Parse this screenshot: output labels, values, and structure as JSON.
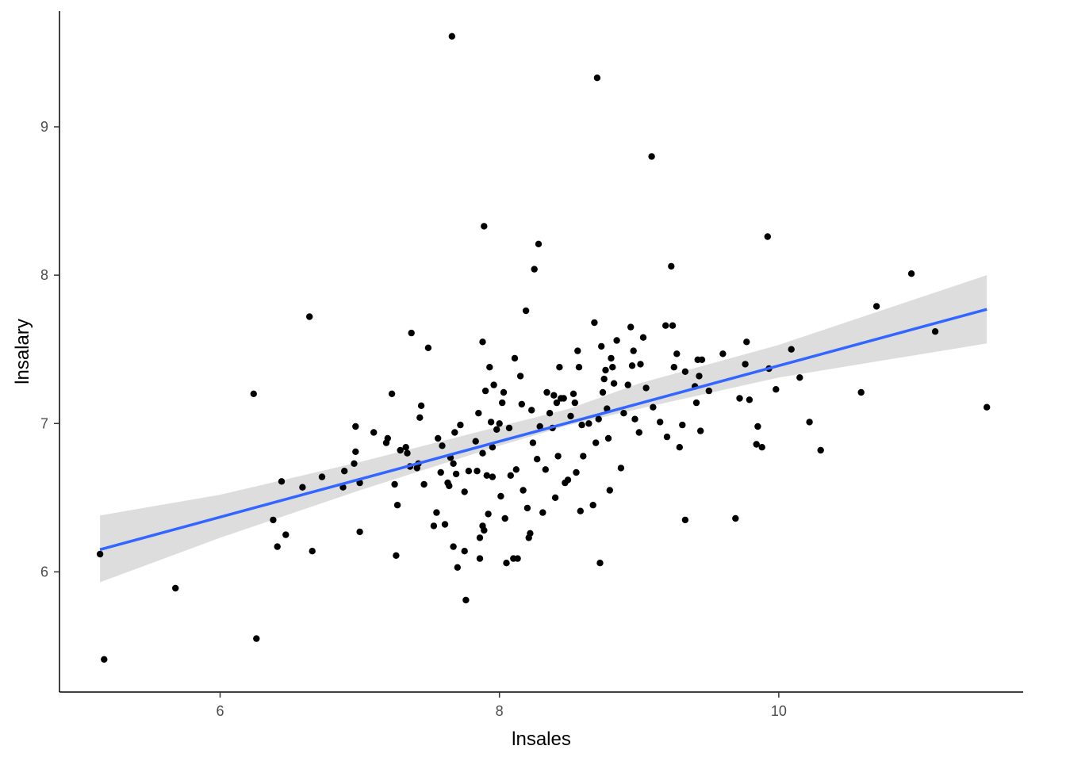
{
  "chart_data": {
    "type": "scatter",
    "xlabel": "lnsales",
    "ylabel": "lnsalary",
    "xlim": [
      4.85,
      11.75
    ],
    "ylim": [
      5.19,
      9.78
    ],
    "x_ticks": [
      6,
      8,
      10
    ],
    "x_tick_labels": [
      "6",
      "8",
      "10"
    ],
    "y_ticks": [
      6,
      7,
      8,
      9
    ],
    "y_tick_labels": [
      "6",
      "7",
      "8",
      "9"
    ],
    "grid": false,
    "legend": "none",
    "colors": {
      "points": "#000000",
      "fit_line": "#3366FF",
      "confidence_band": "#D9D9D9"
    },
    "fit": {
      "method": "lm",
      "x_range": [
        5.14,
        11.49
      ],
      "y_at_start": 6.15,
      "y_at_end": 7.77
    },
    "confidence_band": [
      {
        "x": 5.14,
        "lower": 5.93,
        "upper": 6.38
      },
      {
        "x": 6.0,
        "lower": 6.23,
        "upper": 6.52
      },
      {
        "x": 7.0,
        "lower": 6.55,
        "upper": 6.74
      },
      {
        "x": 8.0,
        "lower": 6.85,
        "upper": 6.98
      },
      {
        "x": 8.5,
        "lower": 6.99,
        "upper": 7.1
      },
      {
        "x": 9.0,
        "lower": 7.1,
        "upper": 7.27
      },
      {
        "x": 10.0,
        "lower": 7.31,
        "upper": 7.53
      },
      {
        "x": 11.49,
        "lower": 7.54,
        "upper": 8.0
      }
    ],
    "points": [
      [
        5.14,
        6.12
      ],
      [
        5.17,
        5.41
      ],
      [
        5.68,
        5.89
      ],
      [
        6.24,
        7.2
      ],
      [
        6.26,
        5.55
      ],
      [
        6.38,
        6.35
      ],
      [
        6.41,
        6.17
      ],
      [
        6.44,
        6.61
      ],
      [
        6.47,
        6.25
      ],
      [
        6.59,
        6.57
      ],
      [
        6.64,
        7.72
      ],
      [
        6.66,
        6.14
      ],
      [
        6.73,
        6.64
      ],
      [
        6.88,
        6.57
      ],
      [
        6.89,
        6.68
      ],
      [
        6.96,
        6.73
      ],
      [
        6.97,
        6.81
      ],
      [
        6.97,
        6.98
      ],
      [
        7.0,
        6.27
      ],
      [
        7.0,
        6.6
      ],
      [
        7.1,
        6.94
      ],
      [
        7.19,
        6.87
      ],
      [
        7.2,
        6.9
      ],
      [
        7.23,
        7.2
      ],
      [
        7.25,
        6.59
      ],
      [
        7.26,
        6.11
      ],
      [
        7.27,
        6.45
      ],
      [
        7.29,
        6.82
      ],
      [
        7.33,
        6.84
      ],
      [
        7.34,
        6.8
      ],
      [
        7.36,
        6.71
      ],
      [
        7.37,
        7.61
      ],
      [
        7.41,
        6.7
      ],
      [
        7.42,
        6.73
      ],
      [
        7.43,
        7.04
      ],
      [
        7.44,
        7.12
      ],
      [
        7.46,
        6.59
      ],
      [
        7.49,
        7.51
      ],
      [
        7.53,
        6.31
      ],
      [
        7.55,
        6.4
      ],
      [
        7.56,
        6.9
      ],
      [
        7.58,
        6.67
      ],
      [
        7.59,
        6.85
      ],
      [
        7.61,
        6.32
      ],
      [
        7.63,
        6.6
      ],
      [
        7.64,
        6.58
      ],
      [
        7.65,
        6.77
      ],
      [
        7.66,
        9.61
      ],
      [
        7.67,
        6.73
      ],
      [
        7.67,
        6.17
      ],
      [
        7.68,
        6.94
      ],
      [
        7.69,
        6.66
      ],
      [
        7.7,
        6.03
      ],
      [
        7.72,
        6.99
      ],
      [
        7.75,
        6.54
      ],
      [
        7.75,
        6.14
      ],
      [
        7.76,
        5.81
      ],
      [
        7.78,
        6.68
      ],
      [
        7.83,
        6.88
      ],
      [
        7.84,
        6.68
      ],
      [
        7.85,
        7.07
      ],
      [
        7.86,
        6.23
      ],
      [
        7.86,
        6.09
      ],
      [
        7.88,
        6.8
      ],
      [
        7.88,
        6.31
      ],
      [
        7.88,
        7.55
      ],
      [
        7.89,
        8.33
      ],
      [
        7.89,
        6.28
      ],
      [
        7.9,
        7.22
      ],
      [
        7.91,
        6.65
      ],
      [
        7.92,
        6.39
      ],
      [
        7.93,
        7.38
      ],
      [
        7.94,
        7.01
      ],
      [
        7.95,
        6.64
      ],
      [
        7.95,
        6.84
      ],
      [
        7.96,
        7.26
      ],
      [
        7.98,
        6.96
      ],
      [
        8.0,
        7.0
      ],
      [
        8.01,
        6.51
      ],
      [
        8.02,
        7.14
      ],
      [
        8.03,
        7.21
      ],
      [
        8.04,
        6.36
      ],
      [
        8.05,
        6.06
      ],
      [
        8.07,
        6.97
      ],
      [
        8.08,
        6.65
      ],
      [
        8.1,
        6.09
      ],
      [
        8.11,
        7.44
      ],
      [
        8.12,
        6.69
      ],
      [
        8.13,
        6.09
      ],
      [
        8.15,
        7.32
      ],
      [
        8.16,
        7.13
      ],
      [
        8.17,
        6.55
      ],
      [
        8.19,
        7.76
      ],
      [
        8.2,
        6.43
      ],
      [
        8.21,
        6.23
      ],
      [
        8.22,
        6.26
      ],
      [
        8.23,
        7.09
      ],
      [
        8.24,
        6.87
      ],
      [
        8.25,
        8.04
      ],
      [
        8.27,
        6.76
      ],
      [
        8.28,
        8.21
      ],
      [
        8.29,
        6.98
      ],
      [
        8.31,
        6.4
      ],
      [
        8.33,
        6.69
      ],
      [
        8.34,
        7.21
      ],
      [
        8.36,
        7.07
      ],
      [
        8.38,
        6.97
      ],
      [
        8.39,
        7.19
      ],
      [
        8.4,
        6.5
      ],
      [
        8.41,
        7.14
      ],
      [
        8.42,
        6.78
      ],
      [
        8.43,
        7.38
      ],
      [
        8.44,
        7.17
      ],
      [
        8.46,
        7.17
      ],
      [
        8.47,
        6.6
      ],
      [
        8.49,
        6.62
      ],
      [
        8.51,
        7.05
      ],
      [
        8.53,
        7.2
      ],
      [
        8.54,
        7.14
      ],
      [
        8.55,
        6.67
      ],
      [
        8.56,
        7.49
      ],
      [
        8.57,
        7.38
      ],
      [
        8.58,
        6.41
      ],
      [
        8.59,
        6.99
      ],
      [
        8.6,
        6.78
      ],
      [
        8.64,
        7.0
      ],
      [
        8.67,
        6.45
      ],
      [
        8.68,
        7.68
      ],
      [
        8.69,
        6.87
      ],
      [
        8.7,
        9.33
      ],
      [
        8.71,
        7.03
      ],
      [
        8.72,
        6.06
      ],
      [
        8.73,
        7.52
      ],
      [
        8.74,
        7.21
      ],
      [
        8.75,
        7.3
      ],
      [
        8.76,
        7.36
      ],
      [
        8.77,
        7.1
      ],
      [
        8.78,
        6.9
      ],
      [
        8.79,
        6.55
      ],
      [
        8.8,
        7.44
      ],
      [
        8.81,
        7.38
      ],
      [
        8.82,
        7.27
      ],
      [
        8.84,
        7.56
      ],
      [
        8.87,
        6.7
      ],
      [
        8.89,
        7.07
      ],
      [
        8.92,
        7.26
      ],
      [
        8.94,
        7.65
      ],
      [
        8.95,
        7.39
      ],
      [
        8.96,
        7.49
      ],
      [
        8.97,
        7.03
      ],
      [
        9.0,
        6.94
      ],
      [
        9.01,
        7.4
      ],
      [
        9.03,
        7.58
      ],
      [
        9.05,
        7.24
      ],
      [
        9.09,
        8.8
      ],
      [
        9.1,
        7.11
      ],
      [
        9.15,
        7.01
      ],
      [
        9.19,
        7.66
      ],
      [
        9.2,
        6.91
      ],
      [
        9.23,
        8.06
      ],
      [
        9.24,
        7.66
      ],
      [
        9.25,
        7.38
      ],
      [
        9.27,
        7.47
      ],
      [
        9.29,
        6.84
      ],
      [
        9.31,
        6.99
      ],
      [
        9.33,
        7.35
      ],
      [
        9.33,
        6.35
      ],
      [
        9.4,
        7.25
      ],
      [
        9.41,
        7.14
      ],
      [
        9.42,
        7.43
      ],
      [
        9.43,
        7.32
      ],
      [
        9.44,
        6.95
      ],
      [
        9.45,
        7.43
      ],
      [
        9.5,
        7.22
      ],
      [
        9.6,
        7.47
      ],
      [
        9.69,
        6.36
      ],
      [
        9.72,
        7.17
      ],
      [
        9.76,
        7.4
      ],
      [
        9.77,
        7.55
      ],
      [
        9.79,
        7.16
      ],
      [
        9.84,
        6.86
      ],
      [
        9.85,
        6.98
      ],
      [
        9.88,
        6.84
      ],
      [
        9.92,
        8.26
      ],
      [
        9.93,
        7.37
      ],
      [
        9.98,
        7.23
      ],
      [
        10.09,
        7.5
      ],
      [
        10.15,
        7.31
      ],
      [
        10.22,
        7.01
      ],
      [
        10.3,
        6.82
      ],
      [
        10.59,
        7.21
      ],
      [
        10.7,
        7.79
      ],
      [
        10.95,
        8.01
      ],
      [
        11.12,
        7.62
      ],
      [
        11.49,
        7.11
      ]
    ]
  }
}
